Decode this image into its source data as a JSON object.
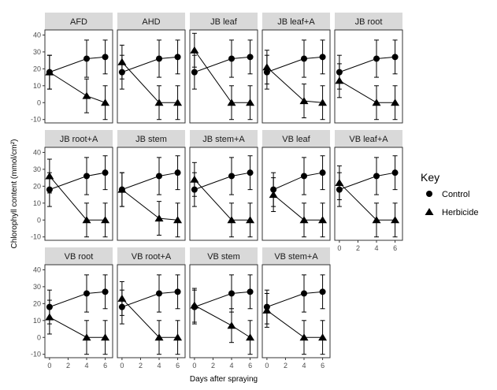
{
  "chart_data": {
    "type": "scatter",
    "layout": "faceted line plot with error bars",
    "xlabel": "Days after spraying",
    "ylabel": "Chlorophyll content (mmol/cm²)",
    "xlim": [
      -0.5,
      6.8
    ],
    "ylim": [
      -12,
      43
    ],
    "xticks": [
      0,
      2,
      4,
      6
    ],
    "yticks": [
      -10,
      0,
      10,
      20,
      30,
      40
    ],
    "legend": {
      "title": "Key",
      "position": "right",
      "entries": [
        {
          "label": "Control",
          "marker": "circle"
        },
        {
          "label": "Herbicide",
          "marker": "triangle"
        }
      ]
    },
    "series_names": [
      "Control",
      "Herbicide"
    ],
    "panels": [
      {
        "label": "AFD",
        "control": [
          {
            "x": 0,
            "y": 18,
            "err": 10
          },
          {
            "x": 4,
            "y": 26,
            "err": 11
          },
          {
            "x": 6,
            "y": 27,
            "err": 10
          }
        ],
        "herbicide": [
          {
            "x": 0,
            "y": 18,
            "err": 10
          },
          {
            "x": 4,
            "y": 4,
            "err": 10
          },
          {
            "x": 6,
            "y": 0,
            "err": 10
          }
        ]
      },
      {
        "label": "AHD",
        "control": [
          {
            "x": 0,
            "y": 18,
            "err": 10
          },
          {
            "x": 4,
            "y": 26,
            "err": 11
          },
          {
            "x": 6,
            "y": 27,
            "err": 10
          }
        ],
        "herbicide": [
          {
            "x": 0,
            "y": 24,
            "err": 10
          },
          {
            "x": 4,
            "y": 0,
            "err": 10
          },
          {
            "x": 6,
            "y": 0,
            "err": 10
          }
        ]
      },
      {
        "label": "JB leaf",
        "control": [
          {
            "x": 0,
            "y": 18,
            "err": 10
          },
          {
            "x": 4,
            "y": 26,
            "err": 11
          },
          {
            "x": 6,
            "y": 27,
            "err": 10
          }
        ],
        "herbicide": [
          {
            "x": 0,
            "y": 31,
            "err": 10
          },
          {
            "x": 4,
            "y": 0,
            "err": 10
          },
          {
            "x": 6,
            "y": 0,
            "err": 10
          }
        ]
      },
      {
        "label": "JB leaf+A",
        "control": [
          {
            "x": 0,
            "y": 18,
            "err": 10
          },
          {
            "x": 4,
            "y": 26,
            "err": 11
          },
          {
            "x": 6,
            "y": 27,
            "err": 10
          }
        ],
        "herbicide": [
          {
            "x": 0,
            "y": 21,
            "err": 10
          },
          {
            "x": 4,
            "y": 1,
            "err": 10
          },
          {
            "x": 6,
            "y": 0,
            "err": 10
          }
        ]
      },
      {
        "label": "JB root",
        "control": [
          {
            "x": 0,
            "y": 18,
            "err": 10
          },
          {
            "x": 4,
            "y": 26,
            "err": 11
          },
          {
            "x": 6,
            "y": 27,
            "err": 10
          }
        ],
        "herbicide": [
          {
            "x": 0,
            "y": 13,
            "err": 10
          },
          {
            "x": 4,
            "y": 0,
            "err": 10
          },
          {
            "x": 6,
            "y": 0,
            "err": 10
          }
        ]
      },
      {
        "label": "JB root+A",
        "control": [
          {
            "x": 0,
            "y": 18,
            "err": 10
          },
          {
            "x": 4,
            "y": 26,
            "err": 11
          },
          {
            "x": 6,
            "y": 28,
            "err": 10
          }
        ],
        "herbicide": [
          {
            "x": 0,
            "y": 26,
            "err": 10
          },
          {
            "x": 4,
            "y": 0,
            "err": 10
          },
          {
            "x": 6,
            "y": 0,
            "err": 10
          }
        ]
      },
      {
        "label": "JB stem",
        "control": [
          {
            "x": 0,
            "y": 18,
            "err": 10
          },
          {
            "x": 4,
            "y": 26,
            "err": 11
          },
          {
            "x": 6,
            "y": 28,
            "err": 10
          }
        ],
        "herbicide": [
          {
            "x": 0,
            "y": 18,
            "err": 10
          },
          {
            "x": 4,
            "y": 1,
            "err": 10
          },
          {
            "x": 6,
            "y": 0,
            "err": 10
          }
        ]
      },
      {
        "label": "JB stem+A",
        "control": [
          {
            "x": 0,
            "y": 18,
            "err": 10
          },
          {
            "x": 4,
            "y": 26,
            "err": 11
          },
          {
            "x": 6,
            "y": 28,
            "err": 10
          }
        ],
        "herbicide": [
          {
            "x": 0,
            "y": 24,
            "err": 10
          },
          {
            "x": 4,
            "y": 0,
            "err": 10
          },
          {
            "x": 6,
            "y": 0,
            "err": 10
          }
        ]
      },
      {
        "label": "VB leaf",
        "control": [
          {
            "x": 0.7,
            "y": 18,
            "err": 10
          },
          {
            "x": 4,
            "y": 26,
            "err": 11
          },
          {
            "x": 6,
            "y": 28,
            "err": 10
          }
        ],
        "herbicide": [
          {
            "x": 0.7,
            "y": 15,
            "err": 10
          },
          {
            "x": 4,
            "y": 0,
            "err": 10
          },
          {
            "x": 6,
            "y": 0,
            "err": 10
          }
        ]
      },
      {
        "label": "VB leaf+A",
        "control": [
          {
            "x": 0,
            "y": 18,
            "err": 10
          },
          {
            "x": 4,
            "y": 26,
            "err": 11
          },
          {
            "x": 6,
            "y": 28,
            "err": 10
          }
        ],
        "herbicide": [
          {
            "x": 0,
            "y": 22,
            "err": 10
          },
          {
            "x": 4,
            "y": 0,
            "err": 10
          },
          {
            "x": 6,
            "y": 0,
            "err": 10
          }
        ]
      },
      {
        "label": "VB root",
        "control": [
          {
            "x": 0,
            "y": 18,
            "err": 10
          },
          {
            "x": 4,
            "y": 26,
            "err": 11
          },
          {
            "x": 6,
            "y": 27,
            "err": 10
          }
        ],
        "herbicide": [
          {
            "x": 0,
            "y": 12,
            "err": 10
          },
          {
            "x": 4,
            "y": 0,
            "err": 10
          },
          {
            "x": 6,
            "y": 0,
            "err": 10
          }
        ]
      },
      {
        "label": "VB root+A",
        "control": [
          {
            "x": 0,
            "y": 18,
            "err": 10
          },
          {
            "x": 4,
            "y": 26,
            "err": 11
          },
          {
            "x": 6,
            "y": 27,
            "err": 10
          }
        ],
        "herbicide": [
          {
            "x": 0,
            "y": 23,
            "err": 10
          },
          {
            "x": 4,
            "y": 0,
            "err": 10
          },
          {
            "x": 6,
            "y": 0,
            "err": 10
          }
        ]
      },
      {
        "label": "VB stem",
        "control": [
          {
            "x": 0,
            "y": 18,
            "err": 10
          },
          {
            "x": 4,
            "y": 26,
            "err": 11
          },
          {
            "x": 6,
            "y": 27,
            "err": 10
          }
        ],
        "herbicide": [
          {
            "x": 0,
            "y": 19,
            "err": 10
          },
          {
            "x": 4,
            "y": 7,
            "err": 10
          },
          {
            "x": 6,
            "y": 0,
            "err": 10
          }
        ]
      },
      {
        "label": "VB stem+A",
        "control": [
          {
            "x": 0,
            "y": 18,
            "err": 10
          },
          {
            "x": 4,
            "y": 26,
            "err": 11
          },
          {
            "x": 6,
            "y": 27,
            "err": 10
          }
        ],
        "herbicide": [
          {
            "x": 0,
            "y": 16,
            "err": 10
          },
          {
            "x": 4,
            "y": 0,
            "err": 10
          },
          {
            "x": 6,
            "y": 0,
            "err": 10
          }
        ]
      }
    ]
  }
}
